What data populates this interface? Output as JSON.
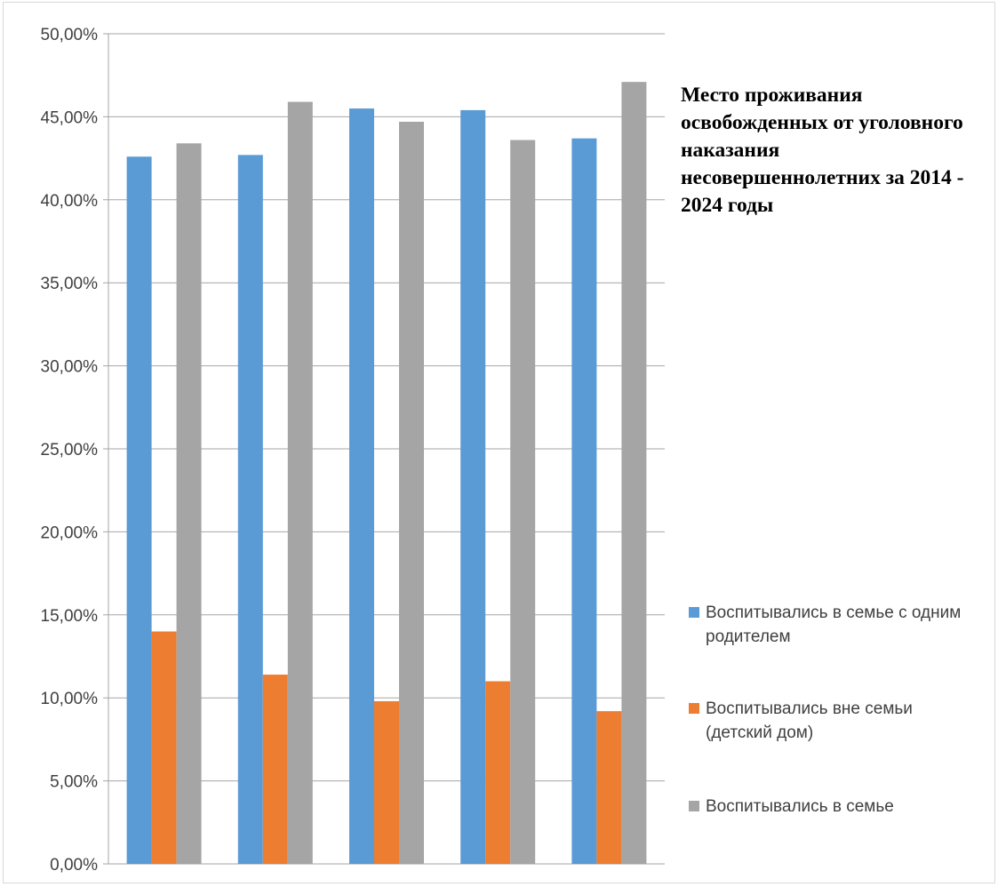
{
  "chart_data": {
    "type": "bar",
    "title": "Место проживания освобожденных от уголовного наказания несовершеннолетних за 2014 - 2024 годы",
    "categories": [
      "",
      "",
      "",
      "",
      ""
    ],
    "series": [
      {
        "name": "Воспитывались в семье с одним родителем",
        "color": "#5b9bd5",
        "values": [
          42.6,
          42.7,
          45.5,
          45.4,
          43.7
        ]
      },
      {
        "name": "Воспитывались вне семьи (детский дом)",
        "color": "#ed7d31",
        "values": [
          14.0,
          11.4,
          9.8,
          11.0,
          9.2
        ]
      },
      {
        "name": "Воспитывались в семье",
        "color": "#a5a5a5",
        "values": [
          43.4,
          45.9,
          44.7,
          43.6,
          47.1
        ]
      }
    ],
    "ylim": [
      0,
      50
    ],
    "yticks": [
      0,
      5,
      10,
      15,
      20,
      25,
      30,
      35,
      40,
      45,
      50
    ],
    "ytick_labels": [
      "0,00%",
      "5,00%",
      "10,00%",
      "15,00%",
      "20,00%",
      "25,00%",
      "30,00%",
      "35,00%",
      "40,00%",
      "45,00%",
      "50,00%"
    ],
    "xlabel": "",
    "ylabel": "",
    "grid": true,
    "legend_position": "right"
  }
}
